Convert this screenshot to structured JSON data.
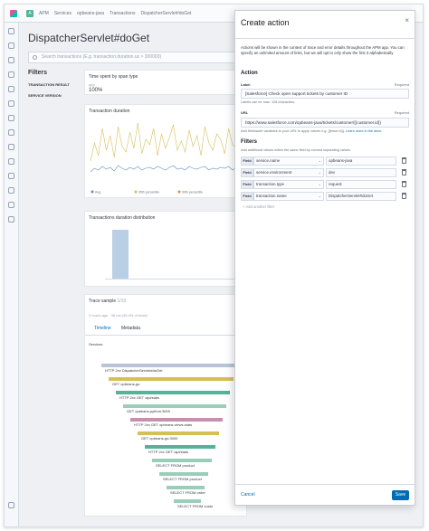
{
  "nav": {
    "app": "APM",
    "breadcrumbs": [
      "Services",
      "opbeans-java",
      "Transactions",
      "DispatcherServlet#doGet"
    ]
  },
  "page": {
    "title": "DispatcherServlet#doGet",
    "search_placeholder": "Search transactions (E.g. transaction.duration.us > 300000)"
  },
  "filters": {
    "title": "Filters",
    "groups": [
      "TRANSACTION RESULT",
      "SERVICE VERSION"
    ]
  },
  "panels": {
    "time_spent_title": "Time spent by span type",
    "time_spent_app": "app",
    "time_spent_pct": "100%",
    "duration_title": "Transaction duration",
    "distribution_title": "Transactions duration distribution",
    "trace_sample_title": "Trace sample",
    "trace_sample_count": "1/10",
    "trace_meta": "3 hours ago · 35 ms (49.4% of trace)",
    "tab_timeline": "Timeline",
    "tab_metadata": "Metadata",
    "services_label": "Services",
    "spans": [
      {
        "type": "HTTP 2xx",
        "name": "DispatcherServlet#doGet",
        "color": "#b9c4d8"
      },
      {
        "type": "",
        "name": "GET opbeans-go",
        "color": "#d6bf57"
      },
      {
        "type": "HTTP 2xx",
        "name": "GET /api/stats",
        "color": "#54b399"
      },
      {
        "type": "",
        "name": "GET opbeans-python:3000",
        "color": "#9aceb8"
      },
      {
        "type": "HTTP 2xx",
        "name": "GET opbeans.views.stats",
        "color": "#ca8eae"
      },
      {
        "type": "",
        "name": "GET opbeans-go:3000",
        "color": "#d6bf57"
      },
      {
        "type": "HTTP 2xx",
        "name": "GET /api/stats",
        "color": "#54b399"
      },
      {
        "type": "",
        "name": "SELECT FROM product",
        "color": "#9aceb8"
      },
      {
        "type": "",
        "name": "SELECT FROM product",
        "color": "#9aceb8"
      },
      {
        "type": "",
        "name": "SELECT FROM order",
        "color": "#9aceb8"
      },
      {
        "type": "",
        "name": "SELECT FROM custo",
        "color": "#9aceb8"
      }
    ]
  },
  "modal": {
    "title": "Create action",
    "close": "×",
    "description": "Actions will be shown in the context of trace and error details throughout the APM app. You can specify an unlimited amount of links, but we will opt to only show the first 3 alphabetically.",
    "action_heading": "Action",
    "label_field": "Label",
    "label_required": "Required",
    "label_value": "[Salesforce] Check open support tickets by customer ID",
    "label_help": "Labels can be max. 128 characters.",
    "url_field": "URL",
    "url_required": "Required",
    "url_value": "https://www.salesforce.com/opbeans-java/tickets/customer/{{customer.id}}",
    "url_help": "Add fieldname variables to your URL to apply values e.g. {{trace.id}}.",
    "url_help_link": "Learn more in the docs.",
    "filters_heading": "Filters",
    "filters_desc": "Add additional values within the same field by comma separating values.",
    "filter_prefix": "Field",
    "filter_rows": [
      {
        "field": "service.name",
        "value": "opbeans-java"
      },
      {
        "field": "service.environment",
        "value": "dev"
      },
      {
        "field": "transaction.type",
        "value": "request"
      },
      {
        "field": "transaction.name",
        "value": "DispatcherServlet#doGet"
      }
    ],
    "add_filter": "+ Add another filter",
    "cancel": "Cancel",
    "save": "Save"
  },
  "chart_data": {
    "type": "line",
    "title": "Transaction duration",
    "series": [
      {
        "name": "Avg.",
        "color": "#6092c0"
      },
      {
        "name": "95th percentile",
        "color": "#d6bf57"
      },
      {
        "name": "99th percentile",
        "color": "#da8b45"
      }
    ],
    "values_95th": [
      120,
      220,
      150,
      300,
      180,
      260,
      140,
      310,
      200,
      170,
      280,
      190,
      330,
      160,
      240,
      210,
      300,
      150,
      270,
      190,
      250,
      320,
      180,
      230,
      170,
      290,
      200,
      260,
      150,
      310,
      220,
      180,
      270,
      240,
      160,
      300,
      210,
      190,
      280,
      230
    ],
    "values_avg": [
      60,
      80,
      70,
      90,
      75,
      85,
      65,
      95,
      80,
      70,
      85,
      75,
      90,
      70,
      80,
      85,
      75,
      90,
      80,
      70,
      85,
      95,
      75,
      80,
      70,
      90,
      80,
      75,
      85,
      90,
      70,
      80,
      75,
      85,
      80,
      90,
      70,
      85,
      80,
      75
    ],
    "ylim": [
      0,
      350
    ]
  }
}
